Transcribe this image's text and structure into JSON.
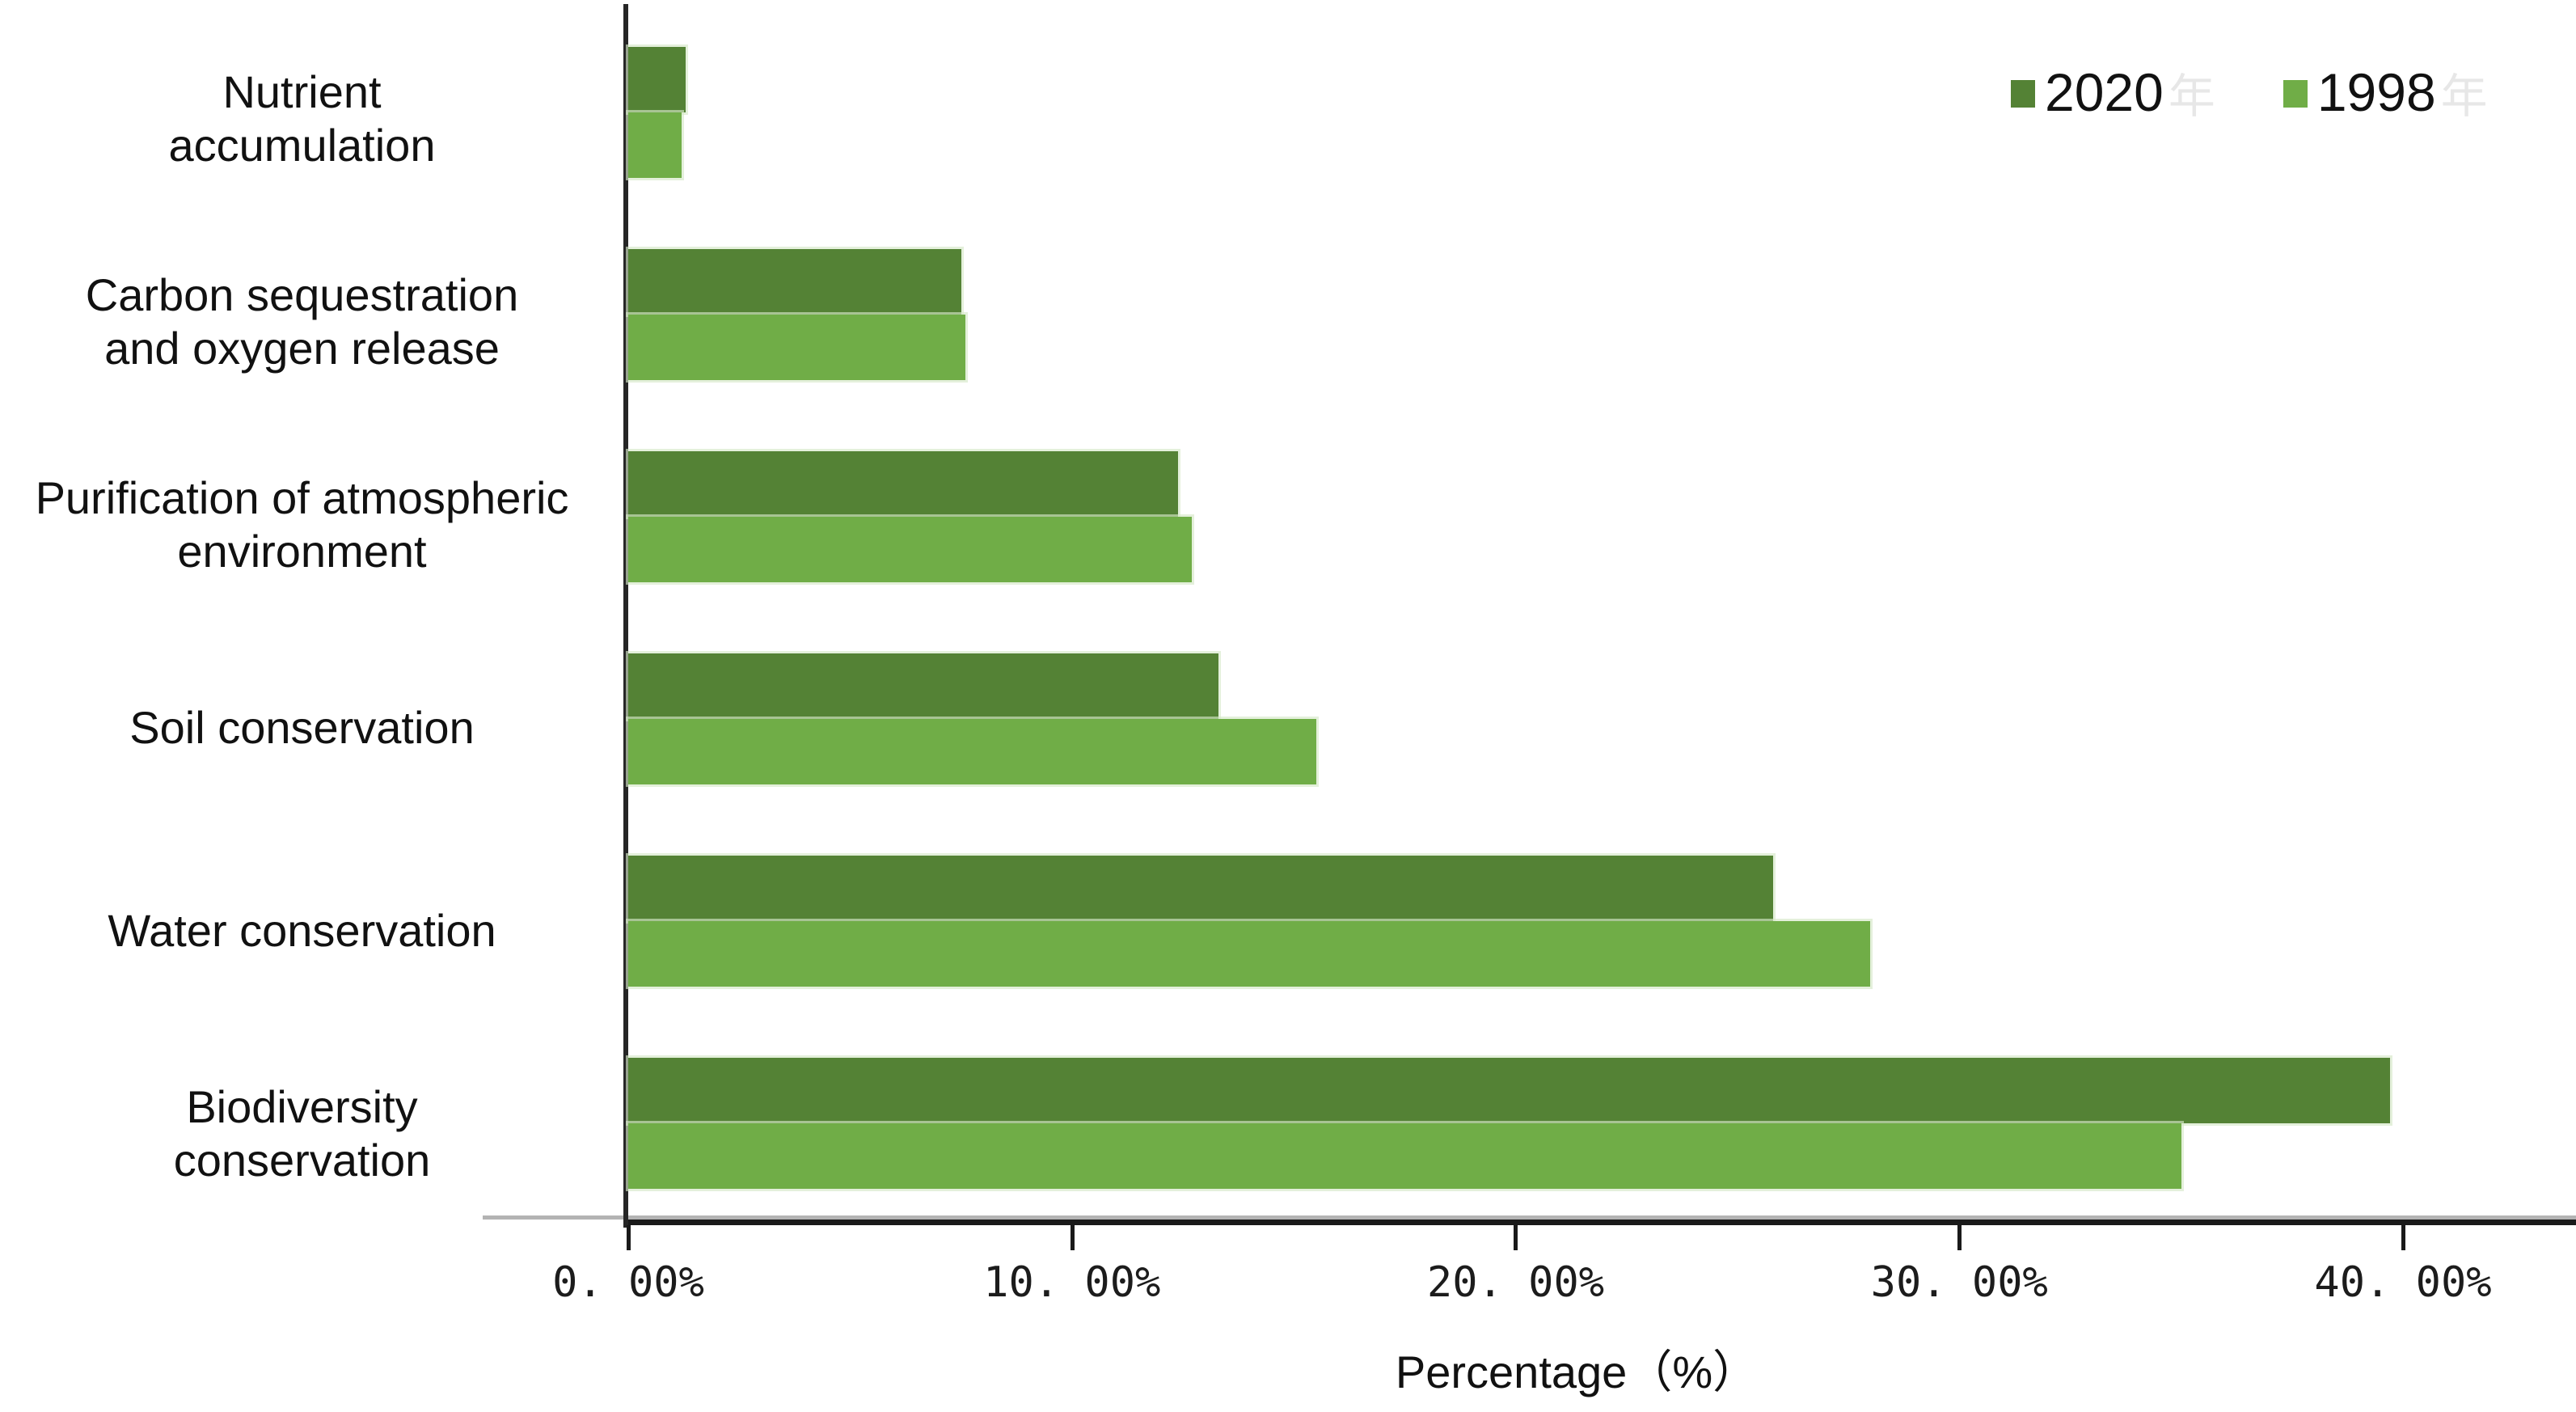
{
  "chart_data": {
    "type": "bar",
    "orientation": "horizontal",
    "title": "",
    "xlabel": "Percentage（%）",
    "ylabel": "",
    "grid": false,
    "legend_position": "top-right",
    "legend_ghost_suffix": "年",
    "categories": [
      "Nutrient accumulation",
      "Carbon sequestration and oxygen release",
      "Purification of atmospheric environment",
      "Soil conservation",
      "Water conservation",
      "Biodiversity conservation"
    ],
    "category_lines": [
      [
        "Nutrient",
        "accumulation"
      ],
      [
        "Carbon sequestration",
        "and oxygen release"
      ],
      [
        "Purification of atmospheric",
        "environment"
      ],
      [
        "Soil conservation"
      ],
      [
        "Water conservation"
      ],
      [
        "Biodiversity",
        "conservation"
      ]
    ],
    "series": [
      {
        "name": "2020",
        "color": "#548235",
        "values": [
          1.3,
          7.5,
          12.4,
          13.3,
          25.8,
          39.7
        ]
      },
      {
        "name": "1998",
        "color": "#70AD47",
        "values": [
          1.2,
          7.6,
          12.7,
          15.5,
          28.0,
          35.0
        ]
      }
    ],
    "x_ticks": {
      "values": [
        0,
        10,
        20,
        30,
        40
      ],
      "labels": [
        "0. 00%",
        "10. 00%",
        "20. 00%",
        "30. 00%",
        "40. 00%"
      ]
    },
    "xlim": [
      0,
      43.9
    ],
    "axis_color": "#1a1a1a",
    "background": "#ffffff"
  }
}
